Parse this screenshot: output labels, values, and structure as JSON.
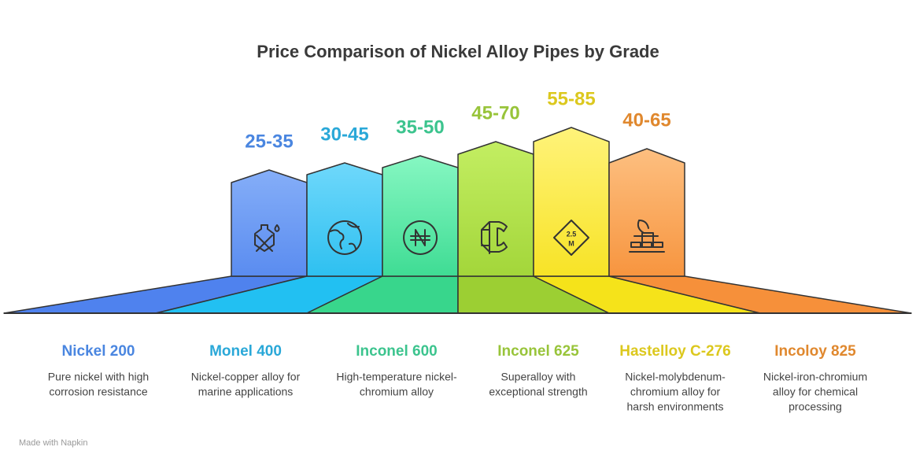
{
  "title": "Price Comparison of Nickel Alloy Pipes by Grade",
  "items": [
    {
      "range": "25-35",
      "name": "Nickel 200",
      "description": [
        "Pure nickel with high",
        "corrosion resistance"
      ]
    },
    {
      "range": "30-45",
      "name": "Monel 400",
      "description": [
        "Nickel-copper alloy for",
        "marine applications"
      ]
    },
    {
      "range": "35-50",
      "name": "Inconel 600",
      "description": [
        "High-temperature nickel-",
        "chromium alloy"
      ]
    },
    {
      "range": "45-70",
      "name": "Inconel 625",
      "description": [
        "Superalloy with",
        "exceptional strength"
      ]
    },
    {
      "range": "55-85",
      "name": "Hastelloy C-276",
      "description": [
        "Nickel-molybdenum-",
        "chromium alloy for",
        "harsh environments"
      ]
    },
    {
      "range": "40-65",
      "name": "Incoloy 825",
      "description": [
        "Nickel-iron-chromium",
        "alloy for chemical",
        "processing"
      ]
    }
  ],
  "footer": "Made with Napkin"
}
